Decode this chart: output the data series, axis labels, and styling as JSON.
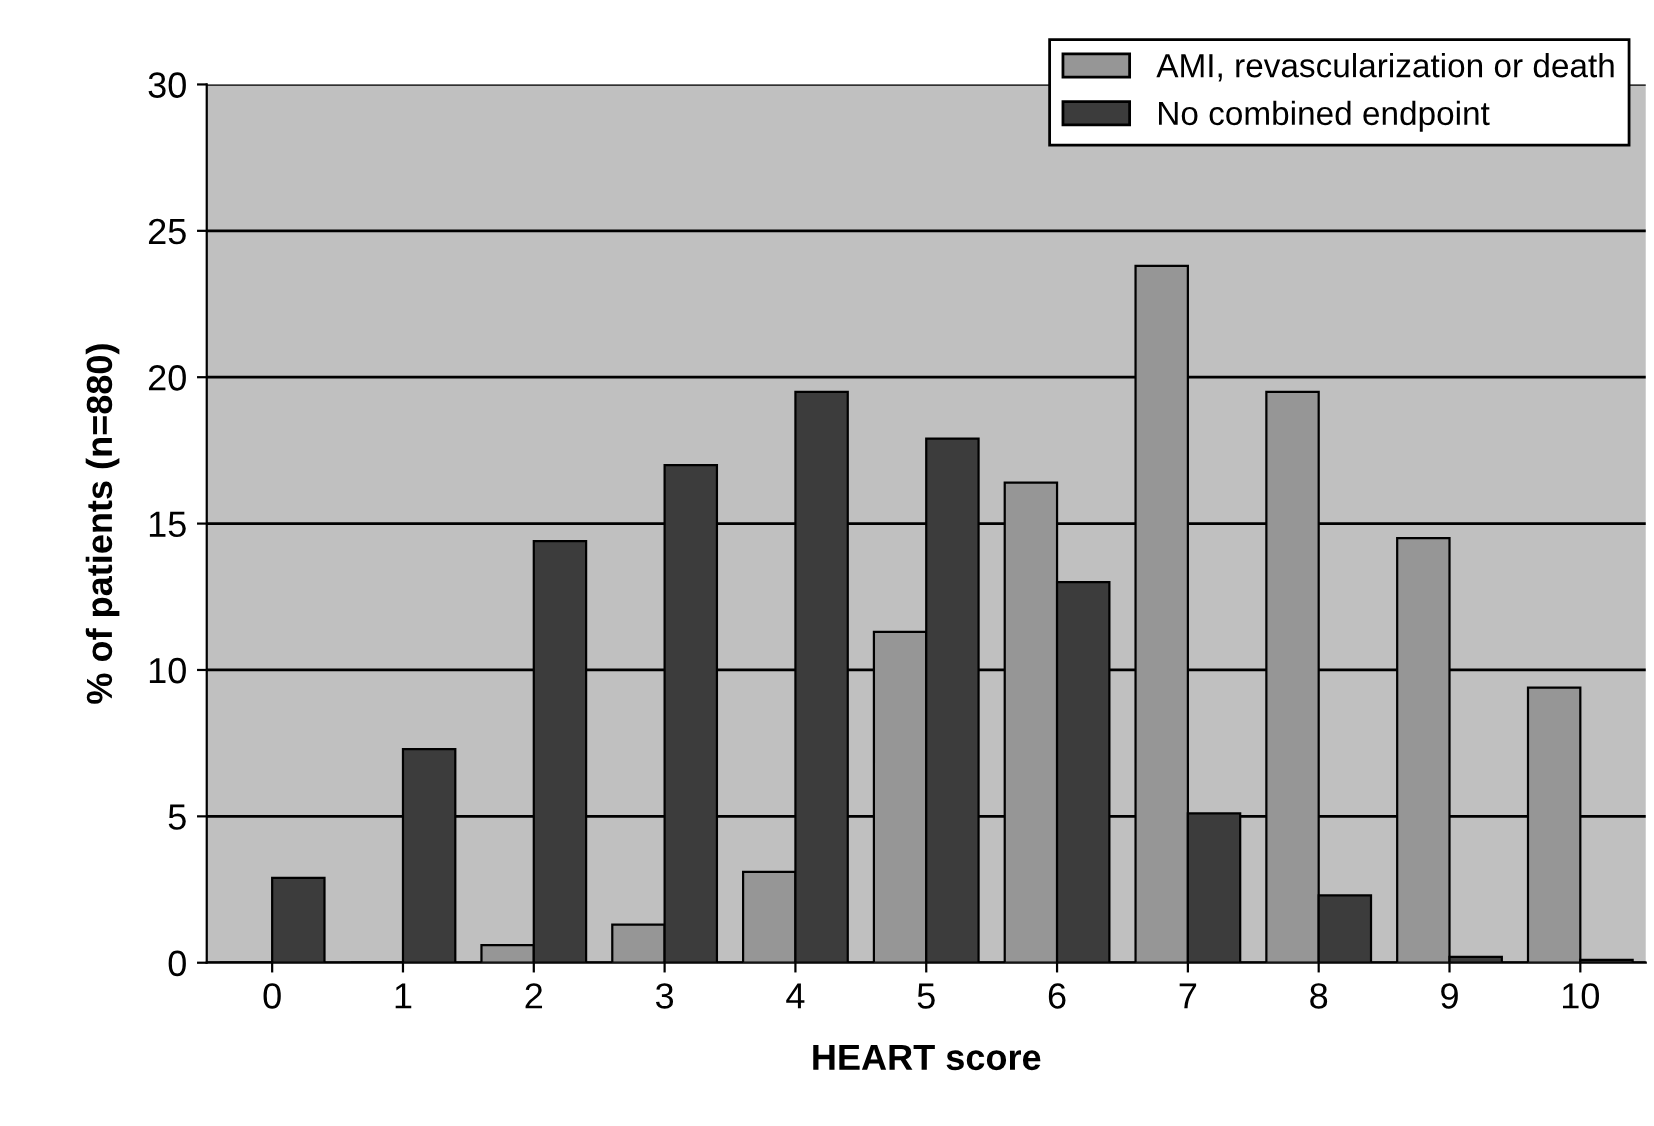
{
  "chart_data": {
    "type": "bar",
    "xlabel": "HEART score",
    "ylabel": "% of patients (n=880)",
    "categories": [
      "0",
      "1",
      "2",
      "3",
      "4",
      "5",
      "6",
      "7",
      "8",
      "9",
      "10"
    ],
    "series": [
      {
        "name": "AMI, revascularization or death",
        "color": "#969696",
        "values": [
          0,
          0,
          0.6,
          1.3,
          3.1,
          11.3,
          16.4,
          23.8,
          19.5,
          14.5,
          9.4
        ]
      },
      {
        "name": "No combined endpoint",
        "color": "#3c3c3c",
        "values": [
          2.9,
          7.3,
          14.4,
          17.0,
          19.5,
          17.9,
          13.0,
          5.1,
          2.3,
          0.2,
          0.1
        ]
      }
    ],
    "ylim": [
      0,
      30
    ],
    "yticks": [
      0,
      5,
      10,
      15,
      20,
      25,
      30
    ],
    "grid": "y",
    "legend": "top right"
  }
}
